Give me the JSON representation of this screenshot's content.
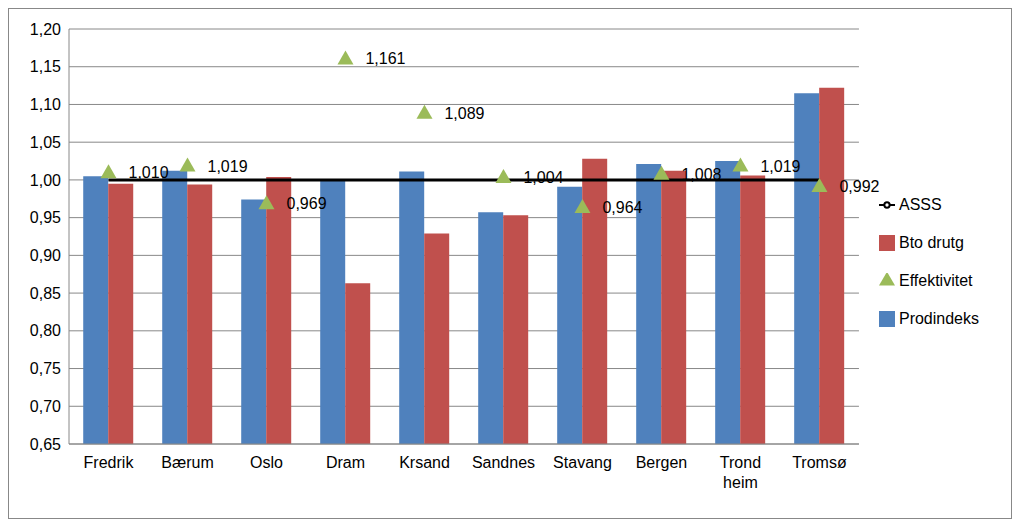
{
  "chart_data": {
    "type": "bar",
    "categories": [
      "Fredrik",
      "Bærum",
      "Oslo",
      "Dram",
      "Krsand",
      "Sandnes",
      "Stavang",
      "Bergen",
      "Trond heim",
      "Tromsø"
    ],
    "series": [
      {
        "name": "Prodindeks",
        "type": "bar",
        "color": "#4f81bd",
        "values": [
          1.005,
          1.012,
          0.974,
          1.0,
          1.011,
          0.957,
          0.991,
          1.021,
          1.025,
          1.115
        ]
      },
      {
        "name": "Bto drutg",
        "type": "bar",
        "color": "#c0504d",
        "values": [
          0.995,
          0.994,
          1.004,
          0.863,
          0.929,
          0.953,
          1.028,
          1.012,
          1.006,
          1.122
        ]
      },
      {
        "name": "ASSS",
        "type": "line",
        "color": "#000000",
        "line_style": "solid",
        "values": [
          1.0,
          1.0,
          1.0,
          1.0,
          1.0,
          1.0,
          1.0,
          1.0,
          1.0,
          1.0
        ]
      },
      {
        "name": "Effektivitet",
        "type": "scatter",
        "color": "#9bbb59",
        "marker": "triangle",
        "data_labels": true,
        "values": [
          1.01,
          1.019,
          0.969,
          1.161,
          1.089,
          1.004,
          0.964,
          1.008,
          1.019,
          0.992
        ],
        "value_labels": [
          "1,010",
          "1,019",
          "0,969",
          "1,161",
          "1,089",
          "1,004",
          "0,964",
          "1,008",
          "1,019",
          "0,992"
        ]
      }
    ],
    "ylim": [
      0.65,
      1.2
    ],
    "yticks": [
      {
        "value": 0.65,
        "label": "0,65"
      },
      {
        "value": 0.7,
        "label": "0,70"
      },
      {
        "value": 0.75,
        "label": "0,75"
      },
      {
        "value": 0.8,
        "label": "0,80"
      },
      {
        "value": 0.85,
        "label": "0,85"
      },
      {
        "value": 0.9,
        "label": "0,90"
      },
      {
        "value": 0.95,
        "label": "0,95"
      },
      {
        "value": 1.0,
        "label": "1,00"
      },
      {
        "value": 1.05,
        "label": "1,05"
      },
      {
        "value": 1.1,
        "label": "1,10"
      },
      {
        "value": 1.15,
        "label": "1,15"
      },
      {
        "value": 1.2,
        "label": "1,20"
      }
    ],
    "grid": true,
    "legend": "right"
  }
}
